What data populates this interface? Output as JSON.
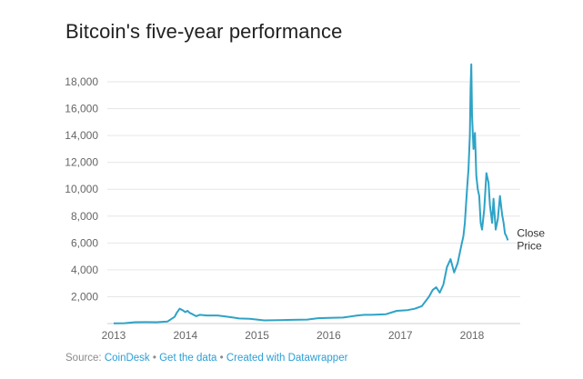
{
  "title": "Bitcoin's five-year performance",
  "footer": {
    "prefix": "Source: ",
    "source": "CoinDesk",
    "sep1": " • ",
    "get_data": "Get the data",
    "sep2": " • ",
    "created": "Created with Datawrapper"
  },
  "chart_data": {
    "type": "line",
    "title": "Bitcoin's five-year performance",
    "xlabel": "",
    "ylabel": "",
    "xlim": [
      2013.0,
      2018.6
    ],
    "ylim": [
      0,
      19500
    ],
    "y_ticks": [
      2000,
      4000,
      6000,
      8000,
      10000,
      12000,
      14000,
      16000,
      18000
    ],
    "y_tick_labels": [
      "2,000",
      "4,000",
      "6,000",
      "8,000",
      "10,000",
      "12,000",
      "14,000",
      "16,000",
      "18,000"
    ],
    "x_ticks": [
      2013,
      2014,
      2015,
      2016,
      2017,
      2018
    ],
    "x_tick_labels": [
      "2013",
      "2014",
      "2015",
      "2016",
      "2017",
      "2018"
    ],
    "grid": true,
    "color": "#2ea3c6",
    "series": [
      {
        "name": "Close Price",
        "label_lines": [
          "Close",
          "Price"
        ],
        "x": [
          2013.0,
          2013.15,
          2013.3,
          2013.45,
          2013.6,
          2013.75,
          2013.85,
          2013.88,
          2013.92,
          2013.96,
          2014.0,
          2014.03,
          2014.06,
          2014.1,
          2014.15,
          2014.2,
          2014.3,
          2014.45,
          2014.6,
          2014.75,
          2014.9,
          2015.0,
          2015.1,
          2015.3,
          2015.5,
          2015.7,
          2015.85,
          2016.0,
          2016.2,
          2016.4,
          2016.5,
          2016.6,
          2016.8,
          2016.95,
          2017.1,
          2017.2,
          2017.3,
          2017.4,
          2017.45,
          2017.5,
          2017.55,
          2017.6,
          2017.65,
          2017.7,
          2017.75,
          2017.8,
          2017.85,
          2017.88,
          2017.9,
          2017.93,
          2017.95,
          2017.97,
          2017.98,
          2017.99,
          2018.0,
          2018.02,
          2018.04,
          2018.06,
          2018.08,
          2018.1,
          2018.12,
          2018.14,
          2018.17,
          2018.2,
          2018.23,
          2018.25,
          2018.28,
          2018.3,
          2018.33,
          2018.36,
          2018.39,
          2018.42,
          2018.44,
          2018.46,
          2018.48,
          2018.5
        ],
        "y": [
          13,
          30,
          100,
          110,
          100,
          150,
          500,
          800,
          1100,
          1000,
          850,
          950,
          800,
          700,
          550,
          650,
          600,
          600,
          500,
          380,
          350,
          300,
          240,
          250,
          280,
          300,
          400,
          420,
          450,
          600,
          650,
          650,
          700,
          950,
          1000,
          1100,
          1300,
          2000,
          2500,
          2700,
          2300,
          2900,
          4200,
          4800,
          3800,
          4500,
          5800,
          6500,
          7500,
          10000,
          11500,
          14000,
          17500,
          19300,
          15500,
          13000,
          14200,
          11000,
          10000,
          9500,
          7500,
          7000,
          8500,
          11200,
          10500,
          8800,
          7500,
          9300,
          7000,
          7800,
          9500,
          8100,
          7500,
          6700,
          6500,
          6200
        ]
      }
    ]
  }
}
